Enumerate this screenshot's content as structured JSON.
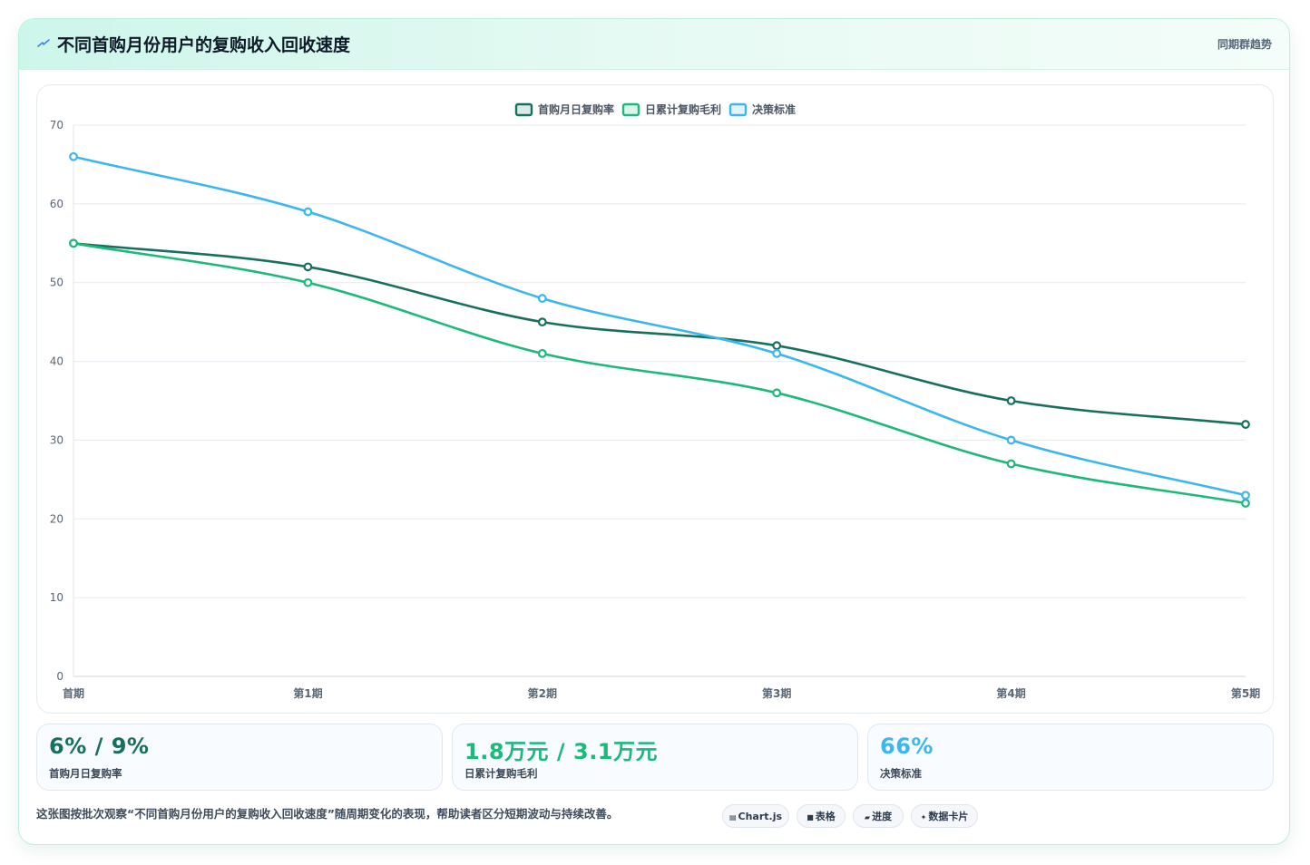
{
  "header": {
    "title": "不同首购月份用户的复购收入回收速度",
    "right_label": "同期群趋势",
    "icon": "spark-icon",
    "accent_color": "#3b82f6"
  },
  "chart_data": {
    "type": "line",
    "title": "",
    "xlabel": "",
    "ylabel": "",
    "categories": [
      "首期",
      "第1期",
      "第2期",
      "第3期",
      "第4期",
      "第5期"
    ],
    "ylim": [
      0,
      70
    ],
    "yticks": [
      0,
      10,
      20,
      30,
      40,
      50,
      60,
      70
    ],
    "grid": true,
    "smooth": true,
    "legend_position": "top-center",
    "series": [
      {
        "name": "首购月日复购率",
        "color": "#17705f",
        "values": [
          55,
          52,
          45,
          42,
          35,
          32
        ]
      },
      {
        "name": "日累计复购毛利",
        "color": "#1db87a",
        "values": [
          55,
          50,
          41,
          36,
          27,
          22
        ]
      },
      {
        "name": "决策标准",
        "color": "#3bb6ef",
        "values": [
          66,
          59,
          48,
          41,
          30,
          23
        ]
      }
    ]
  },
  "stats": [
    {
      "value": "6% / 9%",
      "label": "首购月日复购率",
      "color": "#17705f"
    },
    {
      "value": "1.8万元 / 3.1万元",
      "label": "日累计复购毛利",
      "color": "#1db87a"
    },
    {
      "value": "66%",
      "label": "决策标准",
      "color": "#3bb6ef"
    }
  ],
  "footnote": "这张图按批次观察“不同首购月份用户的复购收入回收速度”随周期变化的表现，帮助读者区分短期波动与持续改善。",
  "pills": [
    {
      "icon": "chart-icon",
      "glyph": "▤",
      "label": "Chart.js"
    },
    {
      "icon": "table-icon",
      "glyph": "■",
      "label": "表格"
    },
    {
      "icon": "progress-icon",
      "glyph": "▰",
      "label": "进度"
    },
    {
      "icon": "sparkle-icon",
      "glyph": "✦",
      "label": "数据卡片"
    }
  ]
}
